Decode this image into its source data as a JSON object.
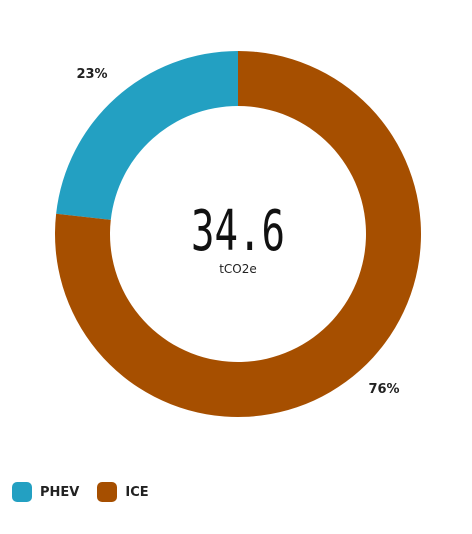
{
  "chart_data": {
    "type": "pie",
    "variant": "donut",
    "center": {
      "value": "34.6",
      "unit": "tCO2e"
    },
    "slices": [
      {
        "name": "PHEV",
        "label": "23%",
        "value": 23,
        "color": "#23a0c2"
      },
      {
        "name": "ICE",
        "label": "76%",
        "value": 76,
        "color": "#a64f00"
      }
    ],
    "legend_position": "bottom-left"
  },
  "legend": {
    "items": [
      {
        "label": "PHEV",
        "color": "#23a0c2"
      },
      {
        "label": "ICE",
        "color": "#a64f00"
      }
    ]
  }
}
